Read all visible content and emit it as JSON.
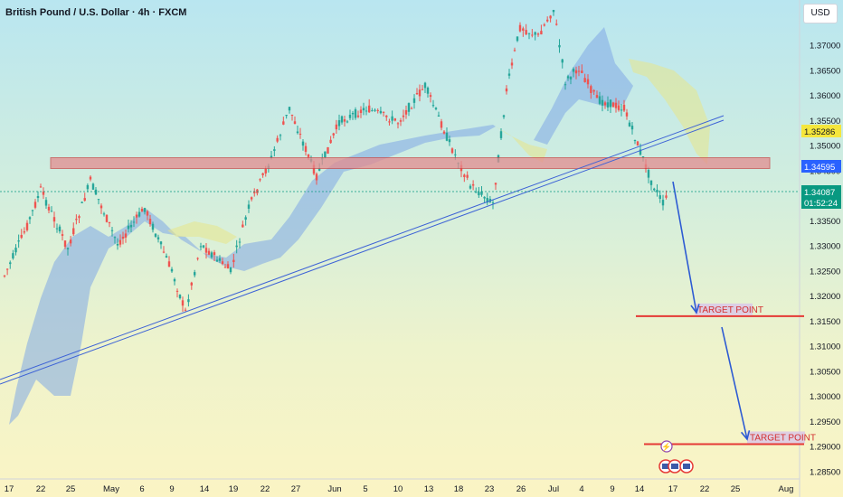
{
  "header": {
    "title": "British Pound / U.S. Dollar · 4h · FXCM",
    "currency": "USD"
  },
  "chart_data": {
    "type": "candlestick",
    "title": "British Pound / U.S. Dollar · 4h · FXCM",
    "y_axis": {
      "ticks": [
        "1.37000",
        "1.36500",
        "1.36000",
        "1.35500",
        "1.35000",
        "1.34500",
        "1.34000",
        "1.33500",
        "1.33000",
        "1.32500",
        "1.32000",
        "1.31500",
        "1.31000",
        "1.30500",
        "1.30000",
        "1.29500",
        "1.29000",
        "1.28500"
      ],
      "range": [
        1.2835,
        1.3745
      ]
    },
    "x_axis": {
      "ticks": [
        "17",
        "22",
        "25",
        "May",
        "6",
        "9",
        "14",
        "19",
        "22",
        "27",
        "Jun",
        "5",
        "10",
        "13",
        "18",
        "23",
        "26",
        "Jul",
        "4",
        "9",
        "14",
        "17",
        "22",
        "25",
        "Aug"
      ]
    },
    "price_labels": [
      {
        "value": "1.35286",
        "color": "#f5e63c"
      },
      {
        "value": "1.34595",
        "color": "#2962ff"
      },
      {
        "value": "1.34087",
        "sub": "01:52:24",
        "color": "#089981"
      }
    ],
    "resistance_zone": [
      1.345,
      1.3465
    ],
    "targets": [
      {
        "label": "TARGET POINT",
        "price": 1.316
      },
      {
        "label": "TARGET POINT",
        "price": 1.2905
      }
    ]
  }
}
